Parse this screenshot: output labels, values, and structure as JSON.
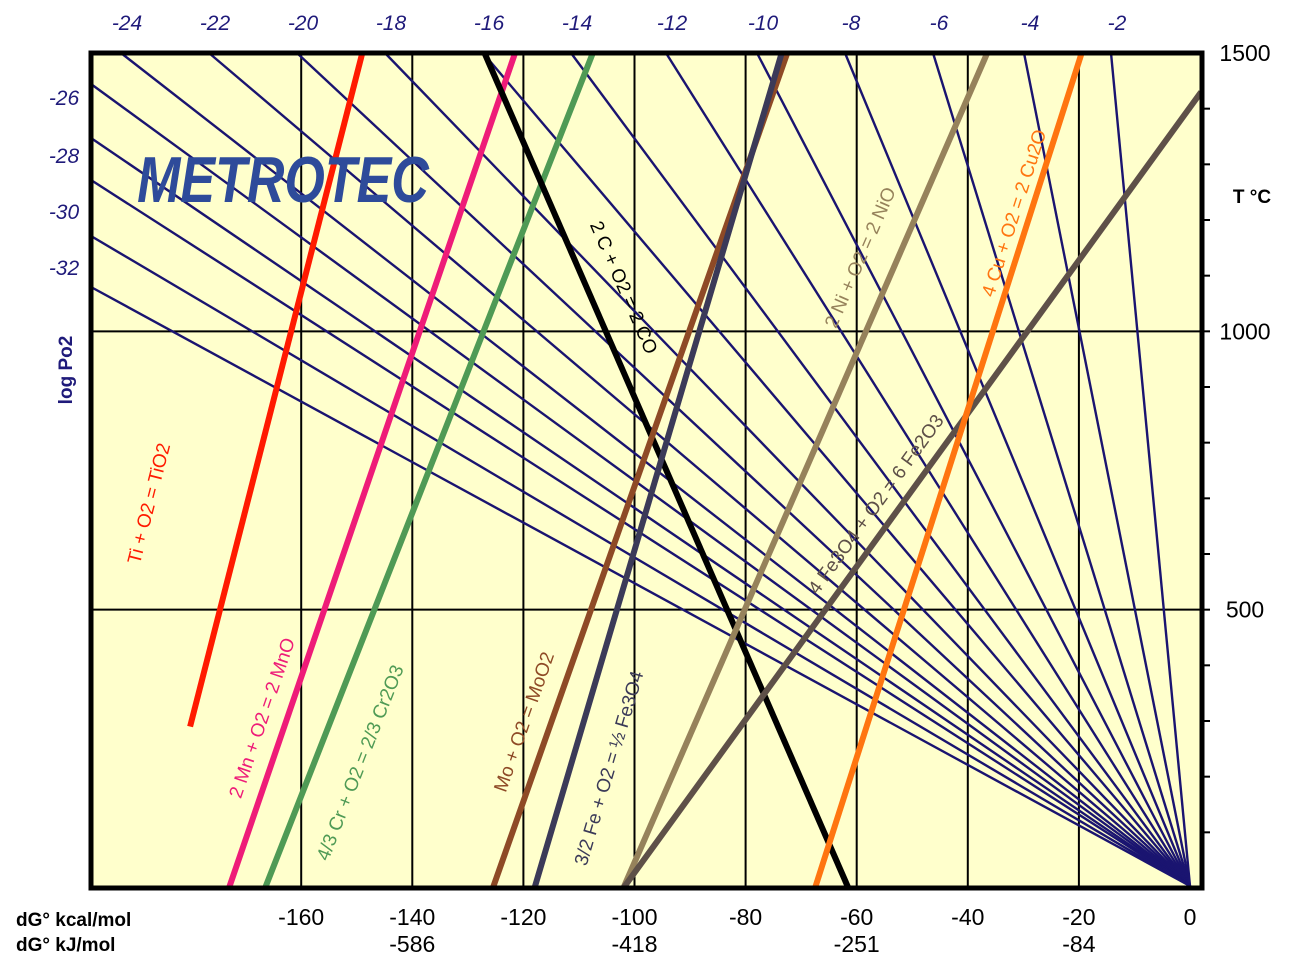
{
  "chart_data": {
    "type": "line",
    "logo": "METROTEC",
    "top_axis": {
      "label": "log Po2",
      "ticks": [
        "-24",
        "-22",
        "-20",
        "-18",
        "-16",
        "-14",
        "-12",
        "-10",
        "-8",
        "-6",
        "-4",
        "-2"
      ]
    },
    "left_axis": {
      "label": "log Po2",
      "ticks": [
        "-26",
        "-28",
        "-30",
        "-32"
      ]
    },
    "right_axis": {
      "label": "T °C",
      "ticks": [
        "1500",
        "1000",
        "500"
      ],
      "range": [
        0,
        1500
      ]
    },
    "bottom_axis": {
      "label_kcal": "dG° kcal/mol",
      "label_kj": "dG° kJ/mol",
      "kcal_ticks": [
        "-160",
        "-140",
        "-120",
        "-100",
        "-80",
        "-60",
        "-40",
        "-20",
        "0"
      ],
      "kj_ticks": [
        "-586",
        "-418",
        "-251",
        "-84"
      ],
      "range": [
        -180,
        0
      ]
    },
    "series": [
      {
        "name": "Ti + O2 = TiO2",
        "color": "#ff1a00",
        "x": [
          -180,
          -149
        ],
        "y": [
          290,
          1500
        ]
      },
      {
        "name": "2 Mn + O2 = 2 MnO",
        "color": "#ee1c78",
        "x": [
          -173,
          -121.5
        ],
        "y": [
          0,
          1500
        ]
      },
      {
        "name": "4/3 Cr + O2 = 2/3 Cr2O3",
        "color": "#4f9a55",
        "x": [
          -166.5,
          -107.5
        ],
        "y": [
          0,
          1500
        ]
      },
      {
        "name": "2 C + O2 = 2 CO",
        "color": "#000000",
        "x": [
          -127,
          -61.5
        ],
        "y": [
          1500,
          0
        ]
      },
      {
        "name": "Mo + O2 = MoO2",
        "color": "#8e4a26",
        "x": [
          -125.5,
          -72.5
        ],
        "y": [
          0,
          1500
        ]
      },
      {
        "name": "3/2 Fe + O2 = ½ Fe3O4",
        "color": "#3b3a58",
        "x": [
          -118,
          -73.5
        ],
        "y": [
          0,
          1500
        ]
      },
      {
        "name": "2 Ni + O2 = 2 NiO",
        "color": "#96825b",
        "x": [
          -102,
          -36.5
        ],
        "y": [
          0,
          1500
        ]
      },
      {
        "name": "4 Fe3O4 + O2 = 6 Fe2O3",
        "color": "#5e5048",
        "x": [
          -102,
          2
        ],
        "y": [
          0,
          1430
        ]
      },
      {
        "name": "4 Cu + O2 = 2 Cu2O",
        "color": "#ff7510",
        "x": [
          -67.5,
          -19.5
        ],
        "y": [
          0,
          1500
        ]
      }
    ]
  }
}
